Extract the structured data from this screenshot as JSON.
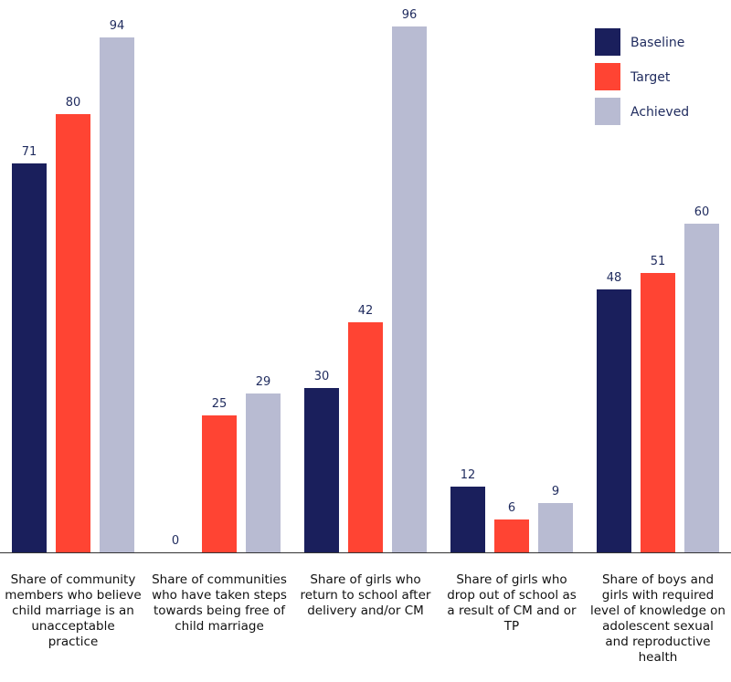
{
  "chart_data": {
    "type": "bar",
    "categories": [
      "Share of community members who believe child marriage is an unacceptable practice",
      "Share of communities who have taken steps towards being free of child marriage",
      "Share of girls who return to school after delivery and/or CM",
      "Share of girls who drop out of school as a result of CM and or TP",
      "Share of boys and girls with required level of knowledge on adolescent sexual and reproductive health"
    ],
    "series": [
      {
        "name": "Baseline",
        "values": [
          71,
          0,
          30,
          12,
          48
        ],
        "color": "#1a1f5c"
      },
      {
        "name": "Target",
        "values": [
          80,
          25,
          42,
          6,
          51
        ],
        "color": "#ff4433"
      },
      {
        "name": "Achieved",
        "values": [
          94,
          29,
          96,
          9,
          60
        ],
        "color": "#b8bbd2"
      }
    ],
    "ylim": [
      0,
      100
    ],
    "title": "",
    "xlabel": "",
    "ylabel": "",
    "grid": false,
    "legend": "top-right"
  }
}
